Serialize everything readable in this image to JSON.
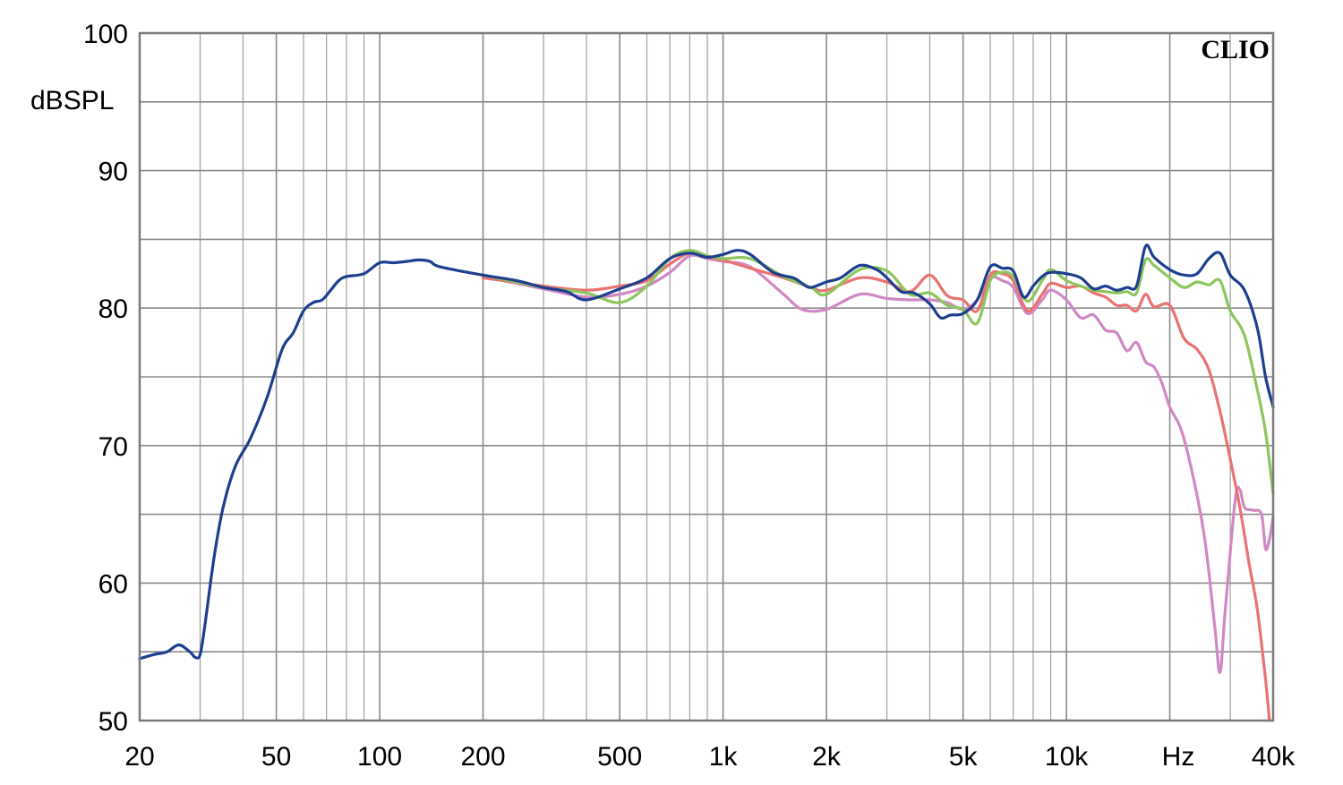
{
  "chart_data": {
    "type": "line",
    "title": "",
    "brand_label": "CLIO",
    "ylabel": "dBSPL",
    "xlabel": "Hz",
    "xscale": "log",
    "xlim": [
      20,
      40000
    ],
    "ylim": [
      50,
      100
    ],
    "grid": true,
    "x_ticks": [
      {
        "value": 20,
        "label": "20"
      },
      {
        "value": 50,
        "label": "50"
      },
      {
        "value": 100,
        "label": "100"
      },
      {
        "value": 200,
        "label": "200"
      },
      {
        "value": 500,
        "label": "500"
      },
      {
        "value": 1000,
        "label": "1k"
      },
      {
        "value": 2000,
        "label": "2k"
      },
      {
        "value": 5000,
        "label": "5k"
      },
      {
        "value": 10000,
        "label": "10k"
      },
      {
        "value": 40000,
        "label": "40k"
      }
    ],
    "y_ticks": [
      {
        "value": 50,
        "label": "50"
      },
      {
        "value": 60,
        "label": "60"
      },
      {
        "value": 70,
        "label": "70"
      },
      {
        "value": 80,
        "label": "80"
      },
      {
        "value": 90,
        "label": "90"
      },
      {
        "value": 100,
        "label": "100"
      }
    ],
    "series": [
      {
        "color": "#d088c4",
        "points": [
          [
            200,
            82.3
          ],
          [
            300,
            81.4
          ],
          [
            400,
            80.8
          ],
          [
            500,
            81.0
          ],
          [
            600,
            81.6
          ],
          [
            700,
            82.6
          ],
          [
            800,
            83.8
          ],
          [
            900,
            83.6
          ],
          [
            1000,
            83.4
          ],
          [
            1200,
            83.0
          ],
          [
            1500,
            81.0
          ],
          [
            1700,
            79.9
          ],
          [
            2000,
            79.9
          ],
          [
            2500,
            81.0
          ],
          [
            3000,
            80.7
          ],
          [
            3500,
            80.6
          ],
          [
            4000,
            80.6
          ],
          [
            4500,
            80.4
          ],
          [
            5000,
            79.9
          ],
          [
            5500,
            80.6
          ],
          [
            6000,
            82.2
          ],
          [
            6500,
            82.0
          ],
          [
            7000,
            81.5
          ],
          [
            7700,
            79.6
          ],
          [
            8500,
            80.6
          ],
          [
            9000,
            81.3
          ],
          [
            10000,
            80.6
          ],
          [
            11000,
            79.3
          ],
          [
            12000,
            79.5
          ],
          [
            13000,
            78.4
          ],
          [
            14000,
            78.2
          ],
          [
            15000,
            76.9
          ],
          [
            16000,
            77.5
          ],
          [
            17000,
            76.1
          ],
          [
            18000,
            75.7
          ],
          [
            19000,
            74.5
          ],
          [
            20000,
            72.8
          ],
          [
            22000,
            70.5
          ],
          [
            25000,
            64.0
          ],
          [
            27000,
            57.0
          ],
          [
            28000,
            53.5
          ],
          [
            29000,
            58.0
          ],
          [
            31000,
            66.0
          ],
          [
            32000,
            66.8
          ],
          [
            33000,
            65.5
          ],
          [
            35000,
            65.3
          ],
          [
            37000,
            65.0
          ],
          [
            38000,
            62.5
          ],
          [
            39000,
            63.2
          ],
          [
            40000,
            64.8
          ]
        ]
      },
      {
        "color": "#ea7272",
        "points": [
          [
            200,
            82.2
          ],
          [
            300,
            81.6
          ],
          [
            400,
            81.3
          ],
          [
            500,
            81.6
          ],
          [
            600,
            82.0
          ],
          [
            700,
            83.2
          ],
          [
            800,
            84.0
          ],
          [
            900,
            83.7
          ],
          [
            1000,
            83.5
          ],
          [
            1200,
            82.9
          ],
          [
            1500,
            82.2
          ],
          [
            1800,
            81.5
          ],
          [
            2000,
            81.3
          ],
          [
            2500,
            82.2
          ],
          [
            3000,
            81.9
          ],
          [
            3500,
            81.2
          ],
          [
            4000,
            82.4
          ],
          [
            4500,
            80.9
          ],
          [
            5000,
            80.6
          ],
          [
            5500,
            79.8
          ],
          [
            6000,
            82.4
          ],
          [
            6500,
            82.5
          ],
          [
            7000,
            82.0
          ],
          [
            7700,
            79.8
          ],
          [
            8500,
            81.0
          ],
          [
            9000,
            81.8
          ],
          [
            10000,
            81.5
          ],
          [
            11000,
            81.6
          ],
          [
            12000,
            81.1
          ],
          [
            13000,
            80.8
          ],
          [
            14000,
            80.2
          ],
          [
            15000,
            80.2
          ],
          [
            16000,
            79.8
          ],
          [
            17000,
            81.0
          ],
          [
            18000,
            80.1
          ],
          [
            20000,
            80.2
          ],
          [
            22000,
            77.8
          ],
          [
            24000,
            77.0
          ],
          [
            26000,
            75.5
          ],
          [
            28000,
            72.5
          ],
          [
            30000,
            69.0
          ],
          [
            32000,
            65.5
          ],
          [
            34000,
            61.5
          ],
          [
            36000,
            58.0
          ],
          [
            38000,
            53.0
          ],
          [
            39000,
            50.0
          ]
        ]
      },
      {
        "color": "#8cc65c",
        "points": [
          [
            200,
            82.4
          ],
          [
            300,
            81.5
          ],
          [
            400,
            81.1
          ],
          [
            500,
            80.4
          ],
          [
            600,
            81.6
          ],
          [
            700,
            83.6
          ],
          [
            800,
            84.2
          ],
          [
            900,
            83.8
          ],
          [
            1000,
            83.6
          ],
          [
            1200,
            83.6
          ],
          [
            1500,
            82.3
          ],
          [
            1800,
            81.5
          ],
          [
            2000,
            81.0
          ],
          [
            2500,
            82.8
          ],
          [
            3000,
            82.7
          ],
          [
            3500,
            81.0
          ],
          [
            4000,
            81.1
          ],
          [
            4500,
            80.2
          ],
          [
            5000,
            79.9
          ],
          [
            5500,
            78.9
          ],
          [
            6000,
            82.0
          ],
          [
            6500,
            82.6
          ],
          [
            7000,
            82.3
          ],
          [
            7700,
            80.5
          ],
          [
            8500,
            82.0
          ],
          [
            9000,
            82.8
          ],
          [
            10000,
            82.0
          ],
          [
            11000,
            81.6
          ],
          [
            12000,
            81.3
          ],
          [
            13000,
            81.2
          ],
          [
            14000,
            81.1
          ],
          [
            15000,
            81.2
          ],
          [
            16000,
            81.1
          ],
          [
            17000,
            83.5
          ],
          [
            18000,
            83.1
          ],
          [
            20000,
            82.2
          ],
          [
            22000,
            81.5
          ],
          [
            24000,
            81.9
          ],
          [
            26000,
            81.7
          ],
          [
            28000,
            82.0
          ],
          [
            30000,
            79.8
          ],
          [
            33000,
            78.0
          ],
          [
            36000,
            74.0
          ],
          [
            38000,
            71.0
          ],
          [
            40000,
            66.5
          ]
        ]
      },
      {
        "color": "#1e3f8f",
        "points": [
          [
            20,
            54.5
          ],
          [
            22,
            54.8
          ],
          [
            24,
            55.0
          ],
          [
            26,
            55.5
          ],
          [
            28,
            55.0
          ],
          [
            29,
            54.6
          ],
          [
            30,
            54.8
          ],
          [
            31,
            57.0
          ],
          [
            33,
            62.0
          ],
          [
            35,
            65.5
          ],
          [
            38,
            68.5
          ],
          [
            42,
            70.5
          ],
          [
            47,
            73.5
          ],
          [
            52,
            77.0
          ],
          [
            56,
            78.2
          ],
          [
            60,
            79.8
          ],
          [
            64,
            80.4
          ],
          [
            68,
            80.6
          ],
          [
            72,
            81.3
          ],
          [
            76,
            82.0
          ],
          [
            80,
            82.3
          ],
          [
            90,
            82.5
          ],
          [
            100,
            83.3
          ],
          [
            110,
            83.3
          ],
          [
            120,
            83.4
          ],
          [
            130,
            83.5
          ],
          [
            140,
            83.4
          ],
          [
            150,
            83.0
          ],
          [
            200,
            82.4
          ],
          [
            250,
            82.0
          ],
          [
            300,
            81.5
          ],
          [
            350,
            81.2
          ],
          [
            400,
            80.6
          ],
          [
            500,
            81.4
          ],
          [
            600,
            82.2
          ],
          [
            700,
            83.6
          ],
          [
            800,
            84.0
          ],
          [
            900,
            83.7
          ],
          [
            1000,
            83.9
          ],
          [
            1100,
            84.2
          ],
          [
            1200,
            83.9
          ],
          [
            1400,
            82.6
          ],
          [
            1600,
            82.2
          ],
          [
            1700,
            81.8
          ],
          [
            1800,
            81.5
          ],
          [
            2000,
            81.9
          ],
          [
            2200,
            82.2
          ],
          [
            2500,
            83.1
          ],
          [
            2800,
            82.8
          ],
          [
            3000,
            82.2
          ],
          [
            3300,
            81.2
          ],
          [
            3600,
            81.1
          ],
          [
            4000,
            80.3
          ],
          [
            4300,
            79.3
          ],
          [
            4600,
            79.5
          ],
          [
            5000,
            79.6
          ],
          [
            5500,
            80.6
          ],
          [
            6000,
            83.0
          ],
          [
            6500,
            82.9
          ],
          [
            7000,
            82.7
          ],
          [
            7500,
            80.8
          ],
          [
            8000,
            81.6
          ],
          [
            8500,
            82.3
          ],
          [
            9000,
            82.6
          ],
          [
            10000,
            82.5
          ],
          [
            11000,
            82.2
          ],
          [
            12000,
            81.4
          ],
          [
            13000,
            81.6
          ],
          [
            14000,
            81.3
          ],
          [
            15000,
            81.5
          ],
          [
            16000,
            81.6
          ],
          [
            17000,
            84.5
          ],
          [
            18000,
            83.7
          ],
          [
            20000,
            82.8
          ],
          [
            22000,
            82.4
          ],
          [
            24000,
            82.5
          ],
          [
            26000,
            83.6
          ],
          [
            28000,
            84.0
          ],
          [
            30000,
            82.4
          ],
          [
            33000,
            81.3
          ],
          [
            36000,
            78.5
          ],
          [
            38000,
            75.0
          ],
          [
            40000,
            72.8
          ]
        ]
      }
    ]
  }
}
